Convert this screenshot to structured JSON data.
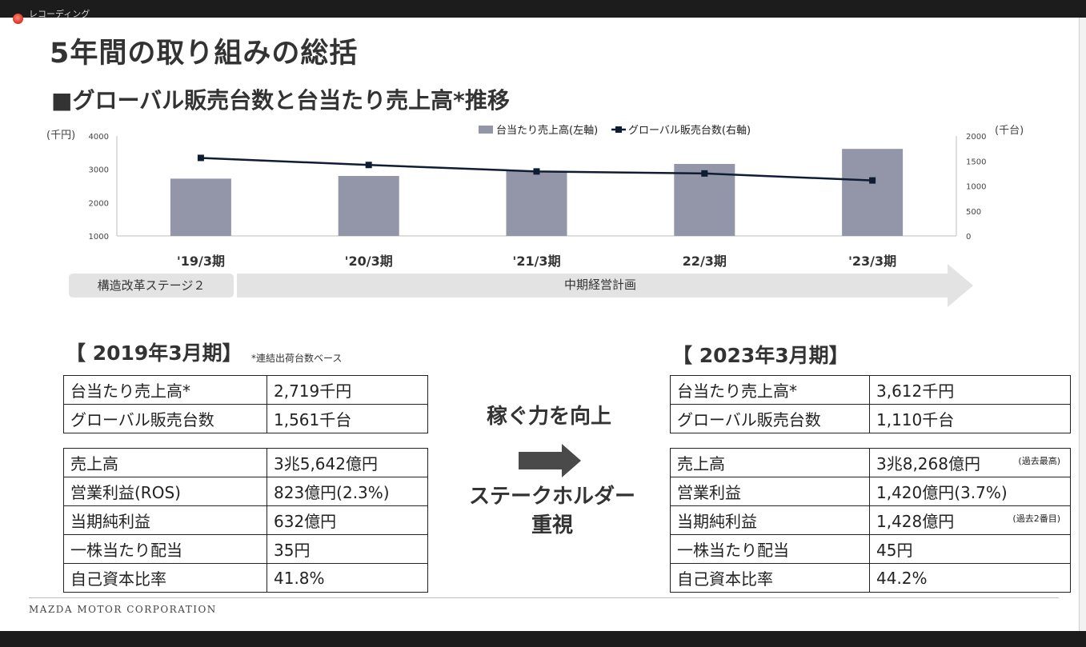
{
  "window": {
    "rec_label": "レコーディング"
  },
  "slide": {
    "title": "5年間の取り組みの総括",
    "subtitle": "■グローバル販売台数と台当たり売上高*推移",
    "stage_label": "構造改革ステージ２",
    "plan_label": "中期経営計画",
    "footer": "MAZDA MOTOR CORPORATION"
  },
  "chart_data": {
    "type": "bar",
    "categories": [
      "'19/3期",
      "'20/3期",
      "'21/3期",
      "22/3期",
      "'23/3期"
    ],
    "series": [
      {
        "name": "台当たり売上高(左軸)",
        "kind": "bar",
        "axis": "left",
        "color": "#9395a9",
        "values": [
          2719,
          2800,
          2950,
          3160,
          3612
        ]
      },
      {
        "name": "グローバル販売台数(右軸)",
        "kind": "line",
        "axis": "right",
        "color": "#0f1d33",
        "values": [
          1561,
          1420,
          1290,
          1250,
          1110
        ]
      }
    ],
    "ylabel_left": "(千円)",
    "ylabel_right": "(千台)",
    "ylim_left": [
      1000,
      4000
    ],
    "yticks_left": [
      "1000",
      "2000",
      "3000",
      "4000"
    ],
    "ylim_right": [
      0,
      2000
    ],
    "yticks_right": [
      "0",
      "500",
      "1000",
      "1500",
      "2000"
    ],
    "grid": false,
    "legend": "top-center"
  },
  "left_panel": {
    "period": "【 2019年3月期】",
    "note": "*連結出荷台数ベース",
    "table1": [
      {
        "label": "台当たり売上高*",
        "value": "2,719千円"
      },
      {
        "label": "グローバル販売台数",
        "value": "1,561千台"
      }
    ],
    "table2": [
      {
        "label": "売上高",
        "value": "3兆5,642億円"
      },
      {
        "label": "営業利益(ROS)",
        "value": "823億円(2.3%)"
      },
      {
        "label": "当期純利益",
        "value": "632億円"
      },
      {
        "label": "一株当たり配当",
        "value": "35円"
      },
      {
        "label": "自己資本比率",
        "value": "41.8%"
      }
    ]
  },
  "center": {
    "top_text": "稼ぐ力を向上",
    "bottom_line1": "ステークホルダー",
    "bottom_line2": "重視"
  },
  "right_panel": {
    "period": "【 2023年3月期】",
    "table1": [
      {
        "label": "台当たり売上高*",
        "value": "3,612千円"
      },
      {
        "label": "グローバル販売台数",
        "value": "1,110千台"
      }
    ],
    "table2": [
      {
        "label": "売上高",
        "value": "3兆8,268億円",
        "tag": "(過去最高)"
      },
      {
        "label": "営業利益",
        "value": "1,420億円(3.7%)"
      },
      {
        "label": "当期純利益",
        "value": "1,428億円",
        "tag": "(過去2番目)"
      },
      {
        "label": "一株当たり配当",
        "value": "45円"
      },
      {
        "label": "自己資本比率",
        "value": "44.2%"
      }
    ]
  }
}
